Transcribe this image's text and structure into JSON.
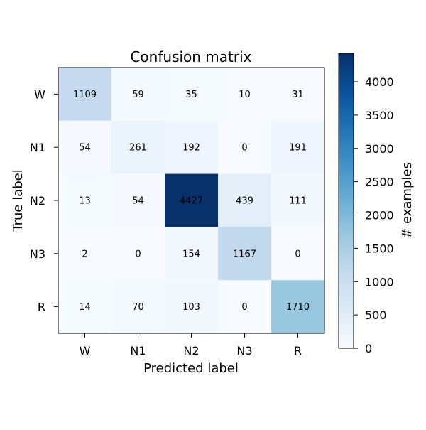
{
  "chart_data": {
    "type": "heatmap",
    "title": "Confusion matrix",
    "xlabel": "Predicted label",
    "ylabel": "True label",
    "x_categories": [
      "W",
      "N1",
      "N2",
      "N3",
      "R"
    ],
    "y_categories": [
      "W",
      "N1",
      "N2",
      "N3",
      "R"
    ],
    "matrix": [
      [
        1109,
        59,
        35,
        10,
        31
      ],
      [
        54,
        261,
        192,
        0,
        191
      ],
      [
        13,
        54,
        4427,
        439,
        111
      ],
      [
        2,
        0,
        154,
        1167,
        0
      ],
      [
        14,
        70,
        103,
        0,
        1710
      ]
    ],
    "colormap": "Blues",
    "colorbar": {
      "label": "# examples",
      "range": [
        0,
        4427
      ],
      "ticks": [
        0,
        500,
        1000,
        1500,
        2000,
        2500,
        3000,
        3500,
        4000
      ]
    },
    "grid": false
  },
  "colors": {
    "low": "#f7fbff",
    "high": "#08306b",
    "text_dark": "#000000"
  }
}
